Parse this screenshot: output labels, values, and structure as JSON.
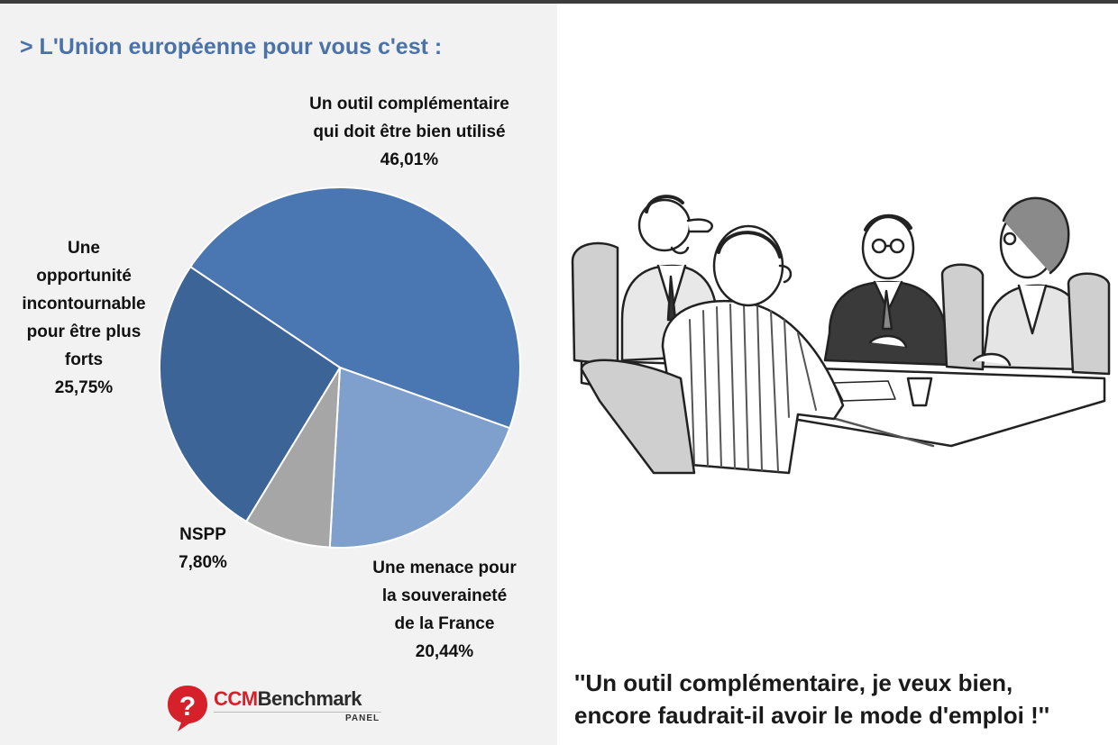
{
  "title": "> L'Union européenne pour vous c'est :",
  "chart_data": {
    "type": "pie",
    "title": "> L'Union européenne pour vous c'est :",
    "slices": [
      {
        "label": [
          "Un outil complémentaire",
          "qui doit être bien utilisé"
        ],
        "value": 46.01,
        "value_text": "46,01%",
        "color": "#4a77b2"
      },
      {
        "label": [
          "Une menace pour",
          "la souveraineté",
          "de la France"
        ],
        "value": 20.44,
        "value_text": "20,44%",
        "color": "#7f9fcd"
      },
      {
        "label": [
          "NSPP"
        ],
        "value": 7.8,
        "value_text": "7,80%",
        "color": "#a6a6a6"
      },
      {
        "label": [
          "Une",
          "opportunité",
          "incontournable",
          "pour être plus",
          "forts"
        ],
        "value": 25.75,
        "value_text": "25,75%",
        "color": "#3d6496"
      }
    ]
  },
  "logo": {
    "brand_ccm": "CCM",
    "brand_rest": "Benchmark",
    "sub": "PANEL"
  },
  "caption": {
    "line1": "''Un outil complémentaire, je veux bien,",
    "line2": "encore faudrait-il avoir le mode d'emploi !''"
  }
}
